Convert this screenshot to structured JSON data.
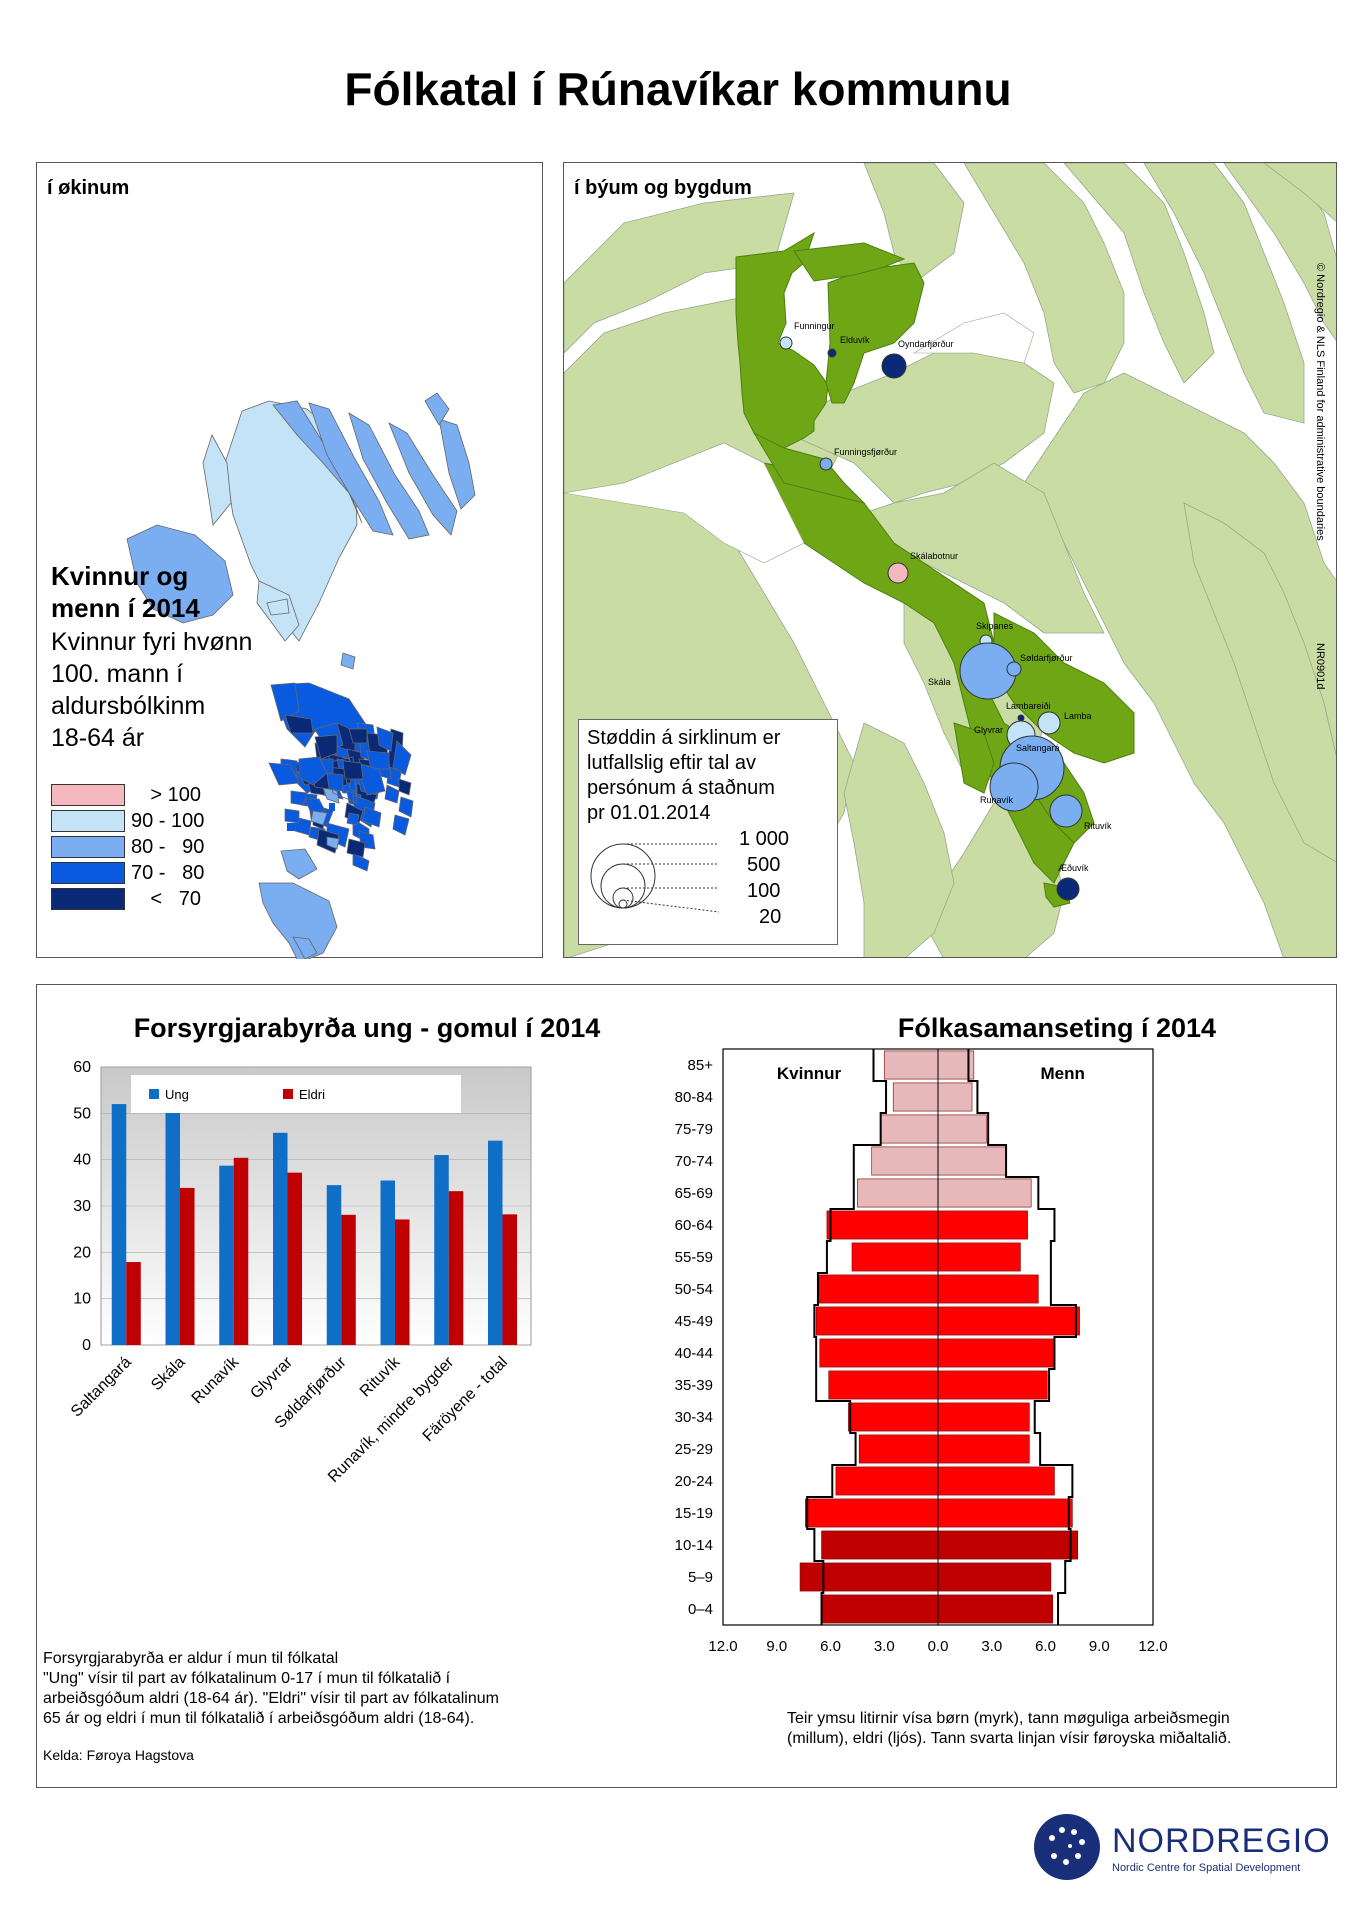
{
  "title": "Fólkatal í Rúnavíkar kommunu",
  "left_panel": {
    "label": "í økinum",
    "legend_title": [
      "Kvinnur og",
      "menn í 2014"
    ],
    "legend_subtitle": [
      "Kvinnur fyri hvønn",
      "100. mann í",
      "aldursbólkinm",
      "18-64 ár"
    ],
    "legend_items": [
      {
        "label": "> 100",
        "color": "#f4b8be"
      },
      {
        "label": "90 - 100",
        "color": "#c5e3f7"
      },
      {
        "label": "80 -   90",
        "color": "#7aaef0"
      },
      {
        "label": "70 -   80",
        "color": "#0a5ae0"
      },
      {
        "label": "<   70",
        "color": "#0a2a78"
      }
    ]
  },
  "right_panel": {
    "label": "í býum og bygdum",
    "copyright": "© Nordregio & NLS Finland for administrative boundaries",
    "map_code": "NR0901d",
    "places": [
      "Funningur",
      "Elduvík",
      "Oyndarfjørður",
      "Funningsfjørður",
      "Skálabotnur",
      "Skipanes",
      "Søldarfjørður",
      "Skála",
      "Lambareiði",
      "Lamba",
      "Glyvrar",
      "Saltangará",
      "Runavík",
      "Rituvík",
      "Æðuvík"
    ],
    "circle_legend_text": [
      "Støddin á sirklinum er",
      "lutfallslig eftir tal av",
      "persónum á staðnum",
      "pr 01.01.2014"
    ],
    "circle_legend_values": [
      "1 000",
      "500",
      "100",
      "20"
    ]
  },
  "bar_chart_title": "Forsyrgjarabyrða ung - gomul í 2014",
  "bar_chart_notes": [
    "Forsyrgjarabyrða er aldur í mun til fólkatal",
    "\"Ung\" vísir til part av fólkatalinum 0-17 í mun til fólkatalið í",
    "arbeiðsgóðum aldri (18-64 ár). \"Eldri\" vísir til part av fólkatalinum",
    "65 ár og eldri í mun til fólkatalið í arbeiðsgóðum aldri (18-64)."
  ],
  "source": "Kelda: Føroya Hagstova",
  "pyramid_title": "Fólkasamanseting í 2014",
  "pyramid_labels": {
    "women": "Kvinnur",
    "men": "Menn"
  },
  "pyramid_note": [
    "Teir ymsu litirnir vísa børn (myrk), tann møguliga arbeiðsmegin",
    "(millum), eldri (ljós). Tann svarta linjan vísir føroyska miðaltalið."
  ],
  "logo": {
    "name": "NORDREGIO",
    "subtitle": "Nordic Centre for Spatial Development"
  },
  "chart_data": [
    {
      "type": "bar",
      "categories": [
        "Saltangará",
        "Skála",
        "Runavík",
        "Glyvrar",
        "Søldarfjørður",
        "Rituvík",
        "Runavík, mindre bygder",
        "Färöyene - total"
      ],
      "series": [
        {
          "name": "Ung",
          "values": [
            52,
            51,
            38.7,
            45.8,
            34.5,
            35.5,
            41,
            44.1
          ],
          "color": "#0f6fc6"
        },
        {
          "name": "Eldri",
          "values": [
            17.9,
            33.9,
            40.4,
            37.2,
            28.1,
            27.1,
            33.2,
            28.2
          ],
          "color": "#c00000"
        }
      ],
      "ylim": [
        0,
        60
      ],
      "yticks": [
        "0",
        "10",
        "20",
        "30",
        "40",
        "50",
        "60"
      ],
      "legend_position": "top"
    },
    {
      "type": "bar",
      "orientation": "horizontal",
      "categories": [
        "85+",
        "80-84",
        "75-79",
        "70-74",
        "65-69",
        "60-64",
        "55-59",
        "50-54",
        "45-49",
        "40-44",
        "35-39",
        "30-34",
        "25-29",
        "20-24",
        "15-19",
        "10-14",
        "5–9",
        "0–4"
      ],
      "series": [
        {
          "name": "Kvinnur",
          "values": [
            3.0,
            2.5,
            3.2,
            3.7,
            4.5,
            6.2,
            4.8,
            6.7,
            6.8,
            6.6,
            6.1,
            5.0,
            4.4,
            5.7,
            7.4,
            6.5,
            7.7,
            6.5
          ]
        },
        {
          "name": "Menn",
          "values": [
            2.0,
            1.9,
            2.7,
            3.8,
            5.2,
            5.0,
            4.6,
            5.6,
            7.9,
            6.5,
            6.1,
            5.1,
            5.1,
            6.5,
            7.5,
            7.8,
            6.3,
            6.4
          ]
        },
        {
          "name": "",
          "values": [
            3.6,
            2.9,
            3.2,
            4.7,
            4.7,
            6.0,
            6.2,
            6.7,
            6.9,
            6.8,
            6.8,
            4.9,
            4.6,
            5.9,
            7.3,
            6.9,
            6.4,
            6.5
          ]
        },
        {
          "name": "",
          "values": [
            1.7,
            2.2,
            2.8,
            3.8,
            5.6,
            6.5,
            6.3,
            6.3,
            7.7,
            6.5,
            6.2,
            5.4,
            5.7,
            7.5,
            7.3,
            7.4,
            7.1,
            6.7
          ]
        }
      ],
      "age_groups": {
        "children": [
          15,
          16,
          17
        ],
        "working": [
          5,
          6,
          7,
          8,
          9,
          10,
          11,
          12,
          13,
          14
        ],
        "elderly": [
          0,
          1,
          2,
          3,
          4
        ]
      },
      "colors": {
        "children": "#c00000",
        "working": "#ff0000",
        "elderly": "#e6b8b9",
        "average_line": "#000000"
      },
      "xlim": [
        -12,
        12
      ],
      "xticks": [
        "12.0",
        "9.0",
        "6.0",
        "3.0",
        "0.0",
        "3.0",
        "6.0",
        "9.0",
        "12.0"
      ]
    }
  ]
}
